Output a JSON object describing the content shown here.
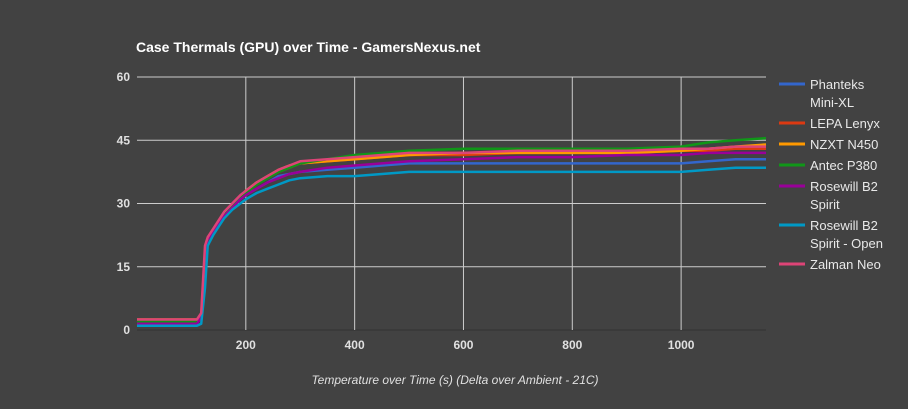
{
  "chart_data": {
    "type": "line",
    "title": "Case Thermals (GPU) over Time - GamersNexus.net",
    "xlabel": "Temperature over Time (s) (Delta over Ambient - 21C)",
    "ylabel": "",
    "xlim": [
      0,
      1156
    ],
    "ylim": [
      0,
      60
    ],
    "x_ticks": [
      "200",
      "400",
      "600",
      "800",
      "1000"
    ],
    "x_tick_values": [
      200,
      400,
      600,
      800,
      1000
    ],
    "y_ticks": [
      "0",
      "15",
      "30",
      "45",
      "60"
    ],
    "y_tick_values": [
      0,
      15,
      30,
      45,
      60
    ],
    "grid": true,
    "legend_position": "right",
    "background": "#424242",
    "x": [
      0,
      110,
      118,
      125,
      130,
      140,
      150,
      160,
      175,
      190,
      200,
      220,
      240,
      260,
      280,
      300,
      350,
      400,
      450,
      500,
      600,
      700,
      800,
      900,
      1000,
      1050,
      1100,
      1156
    ],
    "series": [
      {
        "name": "Phanteks Mini-XL",
        "legend_lines": [
          "Phanteks",
          "Mini-XL"
        ],
        "color": "#3366cc",
        "values": [
          2,
          2,
          3,
          17,
          21,
          23,
          25,
          27,
          29,
          31,
          32,
          33.5,
          35,
          36.5,
          37,
          37.5,
          38,
          38.5,
          39,
          39.5,
          39.5,
          39.5,
          39.5,
          39.5,
          39.5,
          40,
          40.5,
          40.5
        ]
      },
      {
        "name": "LEPA Lenyx",
        "legend_lines": [
          "LEPA Lenyx"
        ],
        "color": "#dc3912",
        "values": [
          2,
          2,
          3.5,
          18,
          21.5,
          23.5,
          25.5,
          27.5,
          29.5,
          31.5,
          32.5,
          34.5,
          36,
          37.5,
          38.5,
          39.5,
          40,
          40.5,
          41,
          41.5,
          41.5,
          42,
          42,
          42,
          42.5,
          42.5,
          43,
          43
        ]
      },
      {
        "name": "NZXT N450",
        "legend_lines": [
          "NZXT N450"
        ],
        "color": "#ff9900",
        "values": [
          2.5,
          2.5,
          3,
          12,
          21,
          23.5,
          25.5,
          27.5,
          29.5,
          31.5,
          33,
          35,
          36.5,
          38,
          39,
          39.5,
          40,
          40.5,
          41,
          41.5,
          42,
          42,
          42,
          42,
          42.5,
          43,
          43.5,
          44
        ]
      },
      {
        "name": "Antec P380",
        "legend_lines": [
          "Antec P380"
        ],
        "color": "#109618",
        "values": [
          2,
          2,
          3,
          15,
          21,
          23.5,
          25.5,
          27.5,
          29.5,
          31.5,
          32.5,
          34.5,
          36,
          37.5,
          38.5,
          39.5,
          40.5,
          41.5,
          42,
          42.5,
          43,
          43,
          43,
          43,
          43.5,
          44.5,
          45,
          45.5
        ]
      },
      {
        "name": "Rosewill B2 Spirit",
        "legend_lines": [
          "Rosewill B2",
          "Spirit"
        ],
        "color": "#990099",
        "values": [
          1.5,
          1.5,
          3,
          19,
          21.5,
          23,
          25,
          27,
          29,
          31,
          32,
          33.5,
          35,
          36,
          37,
          37.5,
          38.5,
          39,
          39.5,
          40,
          40.5,
          41,
          41,
          41.5,
          41.5,
          42,
          42,
          42
        ]
      },
      {
        "name": "Rosewill B2 Spirit - Open",
        "legend_lines": [
          "Rosewill B2",
          "Spirit - Open"
        ],
        "color": "#0099c6",
        "values": [
          1,
          1,
          1.5,
          10,
          20,
          22.5,
          24.5,
          26.5,
          28.5,
          30,
          31,
          32.5,
          33.5,
          34.5,
          35.5,
          36,
          36.5,
          36.5,
          37,
          37.5,
          37.5,
          37.5,
          37.5,
          37.5,
          37.5,
          38,
          38.5,
          38.5
        ]
      },
      {
        "name": "Zalman Neo",
        "legend_lines": [
          "Zalman Neo"
        ],
        "color": "#dd4477",
        "values": [
          2.5,
          2.5,
          4,
          20,
          22,
          24,
          26,
          28,
          30,
          32,
          33,
          35,
          36.5,
          38,
          39,
          40,
          40.5,
          41,
          41.5,
          42,
          42,
          42.5,
          42.5,
          42.5,
          43,
          43,
          43.5,
          43.5
        ]
      }
    ]
  }
}
